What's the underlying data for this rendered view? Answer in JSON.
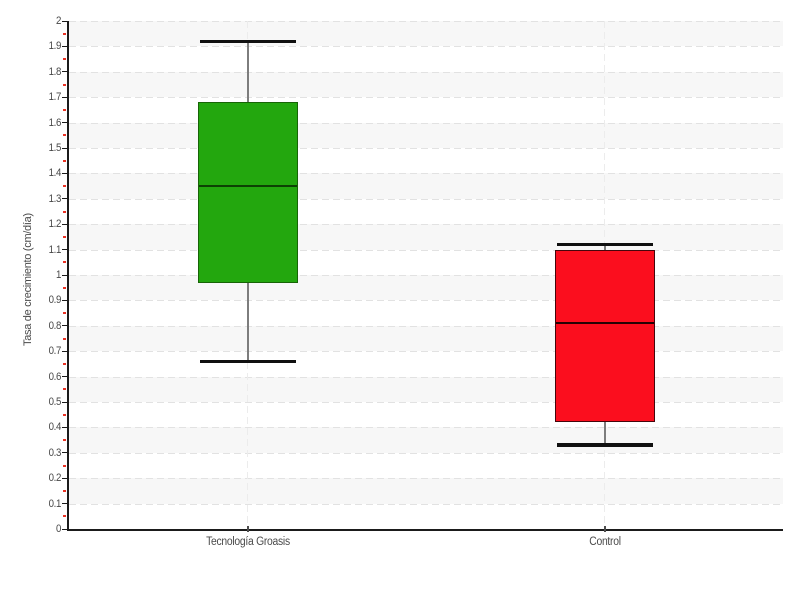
{
  "chart_data": {
    "type": "box",
    "title": "",
    "xlabel": "",
    "ylabel": "Tasa de crecimiento (cm/día)",
    "categories": [
      "Tecnología Groasis",
      "Control"
    ],
    "series": [
      {
        "name": "Tecnología Groasis",
        "min": 0.66,
        "q1": 0.97,
        "median": 1.35,
        "q3": 1.68,
        "max": 1.92,
        "fill": "#23a70e",
        "border": "#176406",
        "median_color": "#0d4104"
      },
      {
        "name": "Control",
        "min": 0.33,
        "q1": 0.42,
        "median": 0.81,
        "q3": 1.1,
        "max": 1.12,
        "fill": "#fb0e1e",
        "border": "#45060c",
        "median_color": "#260204"
      }
    ],
    "ylim": [
      0,
      2
    ],
    "ytick_step": 0.1,
    "ytick_minor_step": 0.05,
    "ytick_labels": [
      "2",
      "1.9",
      "1.8",
      "1.7",
      "1.6",
      "1.5",
      "1.4",
      "1.3",
      "1.2",
      "1.1",
      "1",
      "0.9",
      "0.8",
      "0.7",
      "0.6",
      "0.5",
      "0.4",
      "0.3",
      "0.2",
      "0.1",
      "0"
    ],
    "grid": "horizontal dashed at every 0.1, alternating background bands, dashed vertical line at each category center",
    "legend_position": "none",
    "colors": {
      "band": "#f7f7f7",
      "band_alt": "#ffffff",
      "gridline": "#e2e2e2",
      "axis": "#1b1b1b",
      "tick_text": "#464646",
      "minor_tick": "#ea3224",
      "whisker_stem": "#7d7d7d",
      "whisker_cap": "#101010",
      "background": "#ffffff"
    }
  }
}
